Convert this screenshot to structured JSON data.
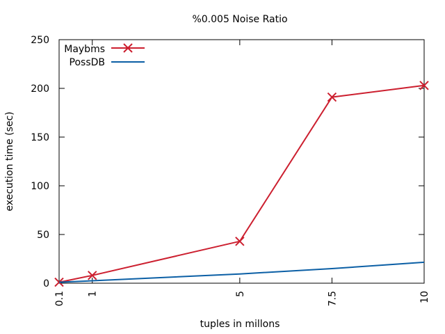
{
  "chart_data": {
    "type": "line",
    "title": "%0.005 Noise Ratio",
    "xlabel": "tuples in millons",
    "ylabel": "execution time (sec)",
    "x": [
      0.1,
      1,
      5,
      7.5,
      10
    ],
    "x_tick_labels": [
      "0.1",
      "1",
      "5",
      "7.5",
      "10"
    ],
    "xlim": [
      0.1,
      10
    ],
    "y_ticks": [
      0,
      50,
      100,
      150,
      200,
      250
    ],
    "ylim": [
      0,
      250
    ],
    "grid": false,
    "legend_position": "top-left",
    "series": [
      {
        "name": "Maybms",
        "values": [
          1,
          8,
          43,
          191,
          203
        ],
        "color": "#cc1f2f",
        "marker": "x"
      },
      {
        "name": "PossDB",
        "values": [
          1,
          2.5,
          9.5,
          15,
          21.5
        ],
        "color": "#0b5fa5",
        "marker": "none"
      }
    ]
  }
}
